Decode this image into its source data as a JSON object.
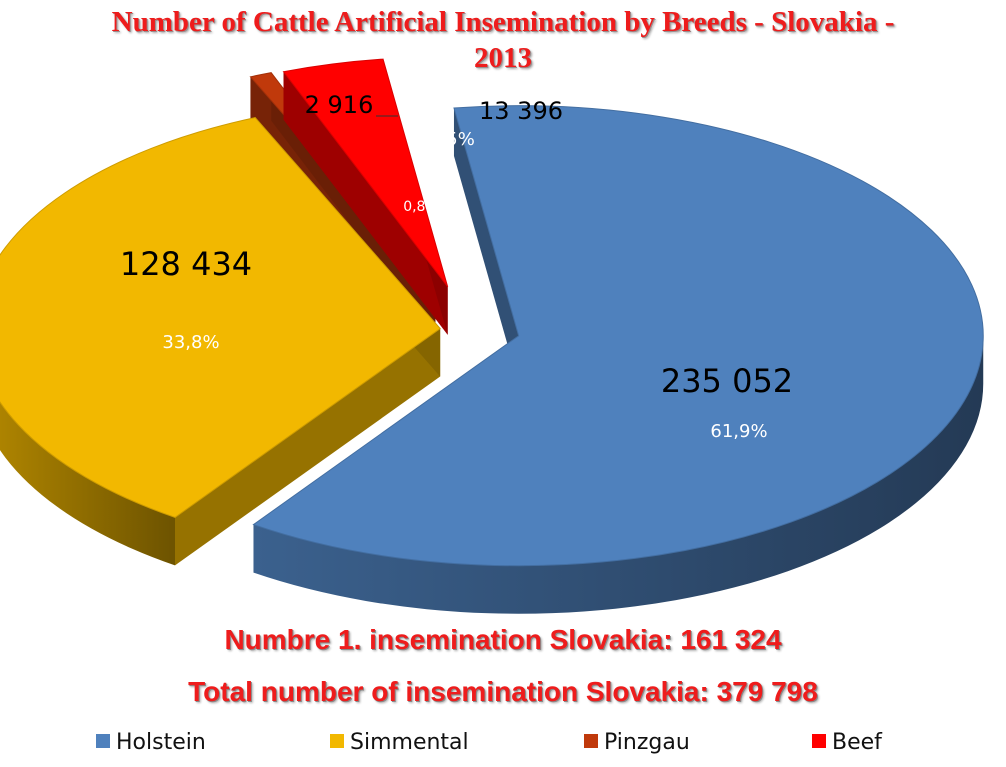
{
  "title": {
    "line1": "Number of  Cattle Artificial Insemination by Breeds - Slovakia -",
    "line2": "2013"
  },
  "summary": {
    "first": "Numbre 1. insemination Slovakia: 161 324",
    "total": "Total number of insemination Slovakia: 379 798"
  },
  "chart_data": {
    "type": "pie",
    "style": "3d-exploded",
    "title": "Number of  Cattle Artificial Insemination by Breeds - Slovakia - 2013",
    "legend_position": "bottom",
    "slices": [
      {
        "name": "Holstein",
        "value": 235052,
        "value_label": "235 052",
        "percent_label": "61,9%",
        "color": "#4f81bd"
      },
      {
        "name": "Simmental",
        "value": 128434,
        "value_label": "128 434",
        "percent_label": "33,8%",
        "color": "#f2b800"
      },
      {
        "name": "Pinzgau",
        "value": 2916,
        "value_label": "2 916",
        "percent_label": "0,8%",
        "color": "#c0390b"
      },
      {
        "name": "Beef",
        "value": 13396,
        "value_label": "13 396",
        "percent_label": "3,5%",
        "color": "#ff0000"
      }
    ]
  }
}
